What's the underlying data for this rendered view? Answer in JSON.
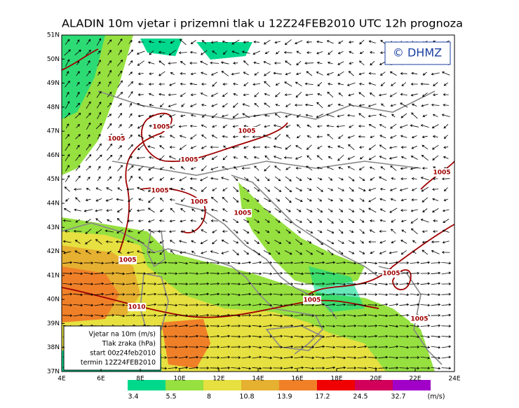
{
  "title": "ALADIN 10m vjetar i prizemni tlak u 12Z24FEB2010 UTC 12h prognoza",
  "logo": "© DHMZ",
  "lat_labels": [
    "51N",
    "50N",
    "49N",
    "48N",
    "47N",
    "46N",
    "45N",
    "44N",
    "43N",
    "42N",
    "41N",
    "40N",
    "39N",
    "38N",
    "37N"
  ],
  "lon_labels": [
    "4E",
    "6E",
    "8E",
    "10E",
    "12E",
    "14E",
    "16E",
    "18E",
    "20E",
    "22E",
    "24E"
  ],
  "isobar_labels": [
    "1005",
    "1005",
    "1005",
    "1005",
    "1005",
    "1005",
    "1005",
    "1005",
    "1005",
    "1005",
    "1005",
    "1005",
    "1010"
  ],
  "legend_lines": [
    "Vjetar na 10m (m/s)",
    "Tlak zraka (hPa)",
    "start 00z24feb2010",
    "termin 12Z24FEB2010"
  ],
  "colorbar": {
    "levels": [
      3.4,
      5.5,
      8,
      10.8,
      13.9,
      17.2,
      24.5,
      32.7
    ],
    "unit": "(m/s)",
    "colors": [
      "#00d88c",
      "#96e040",
      "#e6e040",
      "#e6b030",
      "#f08028",
      "#f00000",
      "#d2005a",
      "#a000c8"
    ]
  }
}
